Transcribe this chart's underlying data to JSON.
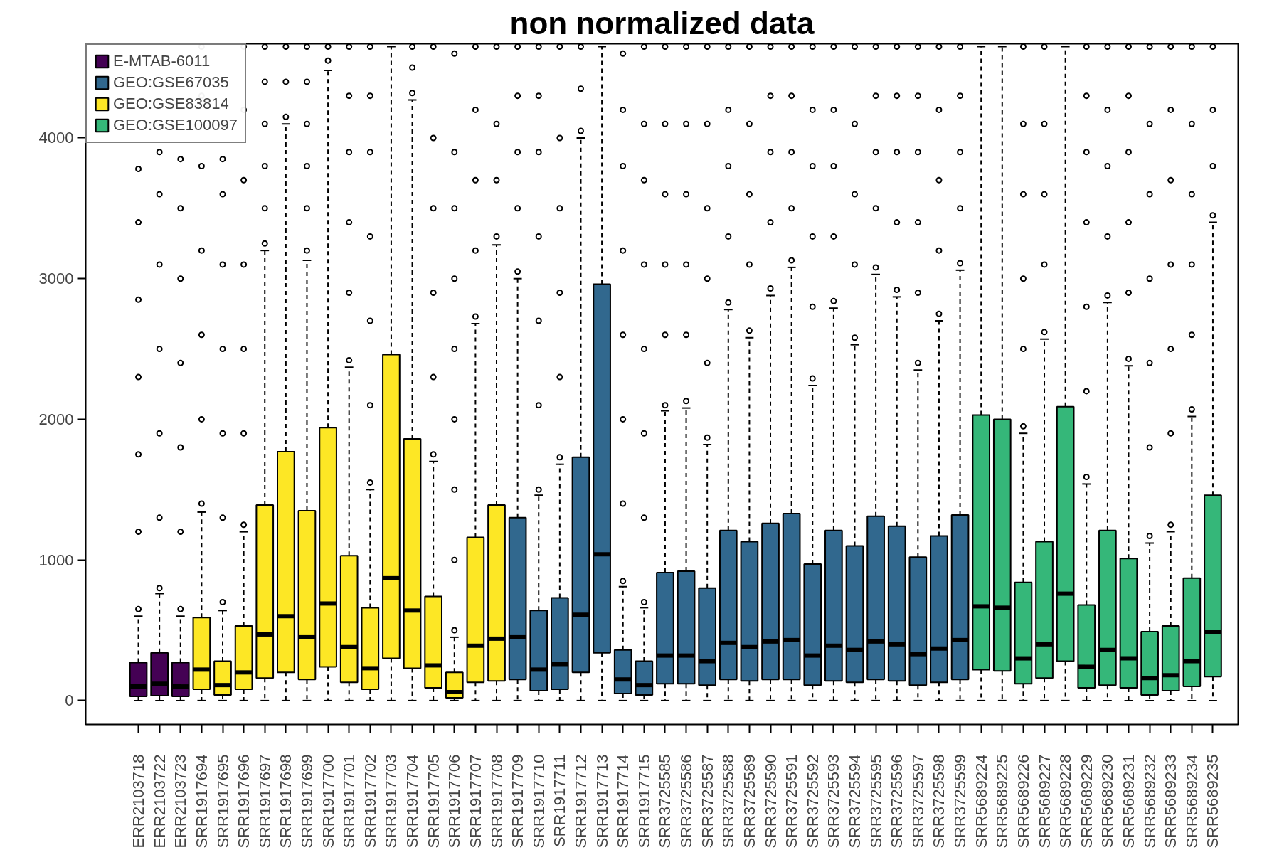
{
  "chart_data": {
    "type": "box",
    "title": "non normalized data",
    "categories": [
      "ERR2103718",
      "ERR2103722",
      "ERR2103723",
      "SRR1917694",
      "SRR1917695",
      "SRR1917696",
      "SRR1917697",
      "SRR1917698",
      "SRR1917699",
      "SRR1917700",
      "SRR1917701",
      "SRR1917702",
      "SRR1917703",
      "SRR1917704",
      "SRR1917705",
      "SRR1917706",
      "SRR1917707",
      "SRR1917708",
      "SRR1917709",
      "SRR1917710",
      "SRR1917711",
      "SRR1917712",
      "SRR1917713",
      "SRR1917714",
      "SRR1917715",
      "SRR3725585",
      "SRR3725586",
      "SRR3725587",
      "SRR3725588",
      "SRR3725589",
      "SRR3725590",
      "SRR3725591",
      "SRR3725592",
      "SRR3725593",
      "SRR3725594",
      "SRR3725595",
      "SRR3725596",
      "SRR3725597",
      "SRR3725598",
      "SRR3725599",
      "SRR5689224",
      "SRR5689225",
      "SRR5689226",
      "SRR5689227",
      "SRR5689228",
      "SRR5689229",
      "SRR5689230",
      "SRR5689231",
      "SRR5689232",
      "SRR5689233",
      "SRR5689234",
      "SRR5689235"
    ],
    "ylim": [
      -170,
      4670
    ],
    "yticks": [
      0,
      1000,
      2000,
      3000,
      4000
    ],
    "grid": false,
    "legend": "top left",
    "series": [
      {
        "name": "E-MTAB-6011",
        "color": "#440154",
        "boxes": [
          {
            "low": 0,
            "q1": 30,
            "median": 100,
            "q3": 270,
            "high": 600,
            "outliers": [
              650,
              1200,
              1750,
              2300,
              2850,
              3400,
              3780
            ]
          },
          {
            "low": 0,
            "q1": 35,
            "median": 120,
            "q3": 340,
            "high": 760,
            "outliers": [
              800,
              1300,
              1900,
              2500,
              3100,
              3600,
              3900
            ]
          },
          {
            "low": 0,
            "q1": 30,
            "median": 100,
            "q3": 270,
            "high": 600,
            "outliers": [
              650,
              1200,
              1800,
              2400,
              3000,
              3500,
              3850
            ]
          },
          null,
          null,
          null,
          null,
          null,
          null,
          null,
          null,
          null,
          null,
          null,
          null,
          null,
          null,
          null,
          null,
          null,
          null,
          null,
          null,
          null,
          null,
          null,
          null,
          null,
          null,
          null,
          null,
          null,
          null,
          null,
          null,
          null,
          null,
          null,
          null,
          null,
          null,
          null,
          null,
          null,
          null,
          null,
          null,
          null,
          null,
          null,
          null,
          null
        ]
      },
      {
        "name": "GEO:GSE67035",
        "color": "#31688e",
        "boxes": [
          null,
          null,
          null,
          null,
          null,
          null,
          null,
          null,
          null,
          null,
          null,
          null,
          null,
          null,
          null,
          null,
          null,
          null,
          {
            "low": 0,
            "q1": 150,
            "median": 450,
            "q3": 1300,
            "high": 3000,
            "outliers": [
              3050,
              3500,
              3900,
              4300,
              4650
            ]
          },
          {
            "low": 0,
            "q1": 70,
            "median": 220,
            "q3": 640,
            "high": 1460,
            "outliers": [
              1500,
              2100,
              2700,
              3300,
              3900,
              4300,
              4650
            ]
          },
          {
            "low": 0,
            "q1": 80,
            "median": 260,
            "q3": 730,
            "high": 1680,
            "outliers": [
              1730,
              2300,
              2900,
              3500,
              4000,
              4650
            ]
          },
          {
            "low": 0,
            "q1": 200,
            "median": 610,
            "q3": 1730,
            "high": 4000,
            "outliers": [
              4050,
              4350,
              4650
            ]
          },
          {
            "low": 0,
            "q1": 340,
            "median": 1040,
            "q3": 2960,
            "high": 4650
          },
          {
            "low": 0,
            "q1": 50,
            "median": 150,
            "q3": 360,
            "high": 810,
            "outliers": [
              850,
              1400,
              2000,
              2600,
              3200,
              3800,
              4200,
              4600
            ]
          },
          {
            "low": 0,
            "q1": 40,
            "median": 110,
            "q3": 280,
            "high": 660,
            "outliers": [
              700,
              1300,
              1900,
              2500,
              3100,
              3700,
              4100,
              4650
            ]
          },
          {
            "low": 0,
            "q1": 120,
            "median": 320,
            "q3": 910,
            "high": 2060,
            "outliers": [
              2100,
              2600,
              3100,
              3600,
              4100,
              4650
            ]
          },
          {
            "low": 0,
            "q1": 120,
            "median": 320,
            "q3": 920,
            "high": 2080,
            "outliers": [
              2130,
              2600,
              3100,
              3600,
              4100,
              4650
            ]
          },
          {
            "low": 0,
            "q1": 110,
            "median": 280,
            "q3": 800,
            "high": 1820,
            "outliers": [
              1870,
              2400,
              3000,
              3500,
              4100,
              4650
            ]
          },
          {
            "low": 0,
            "q1": 150,
            "median": 410,
            "q3": 1210,
            "high": 2780,
            "outliers": [
              2830,
              3300,
              3800,
              4200,
              4650
            ]
          },
          {
            "low": 0,
            "q1": 140,
            "median": 380,
            "q3": 1130,
            "high": 2580,
            "outliers": [
              2630,
              3100,
              3600,
              4100,
              4650
            ]
          },
          {
            "low": 0,
            "q1": 150,
            "median": 420,
            "q3": 1260,
            "high": 2880,
            "outliers": [
              2930,
              3400,
              3900,
              4300,
              4650
            ]
          },
          {
            "low": 0,
            "q1": 150,
            "median": 430,
            "q3": 1330,
            "high": 3080,
            "outliers": [
              3130,
              3500,
              3900,
              4300,
              4650
            ]
          },
          {
            "low": 0,
            "q1": 110,
            "median": 320,
            "q3": 970,
            "high": 2240,
            "outliers": [
              2290,
              2800,
              3300,
              3800,
              4200,
              4650
            ]
          },
          {
            "low": 0,
            "q1": 140,
            "median": 390,
            "q3": 1210,
            "high": 2790,
            "outliers": [
              2840,
              3300,
              3800,
              4200,
              4650
            ]
          },
          {
            "low": 0,
            "q1": 130,
            "median": 360,
            "q3": 1100,
            "high": 2530,
            "outliers": [
              2580,
              3100,
              3600,
              4100,
              4650
            ]
          },
          {
            "low": 0,
            "q1": 150,
            "median": 420,
            "q3": 1310,
            "high": 3030,
            "outliers": [
              3080,
              3500,
              3900,
              4300,
              4650
            ]
          },
          {
            "low": 0,
            "q1": 140,
            "median": 400,
            "q3": 1240,
            "high": 2870,
            "outliers": [
              2920,
              3400,
              3900,
              4300,
              4650
            ]
          },
          {
            "low": 0,
            "q1": 110,
            "median": 330,
            "q3": 1020,
            "high": 2350,
            "outliers": [
              2400,
              2900,
              3400,
              3900,
              4300,
              4650
            ]
          },
          {
            "low": 0,
            "q1": 130,
            "median": 370,
            "q3": 1170,
            "high": 2700,
            "outliers": [
              2750,
              3200,
              3700,
              4200,
              4650
            ]
          },
          {
            "low": 0,
            "q1": 150,
            "median": 430,
            "q3": 1320,
            "high": 3060,
            "outliers": [
              3110,
              3500,
              3900,
              4300,
              4650
            ]
          },
          null,
          null,
          null,
          null,
          null,
          null,
          null,
          null,
          null,
          null,
          null,
          null
        ]
      },
      {
        "name": "GEO:GSE83814",
        "color": "#fde725",
        "boxes": [
          null,
          null,
          null,
          {
            "low": 0,
            "q1": 80,
            "median": 220,
            "q3": 590,
            "high": 1340,
            "outliers": [
              1400,
              2000,
              2600,
              3200,
              3800,
              4300,
              4650
            ]
          },
          {
            "low": 0,
            "q1": 40,
            "median": 110,
            "q3": 280,
            "high": 640,
            "outliers": [
              700,
              1300,
              1900,
              2500,
              3100,
              3600,
              3850
            ]
          },
          {
            "low": 0,
            "q1": 80,
            "median": 200,
            "q3": 530,
            "high": 1200,
            "outliers": [
              1250,
              1900,
              2500,
              3100,
              3700,
              4200,
              4650
            ]
          },
          {
            "low": 0,
            "q1": 160,
            "median": 470,
            "q3": 1390,
            "high": 3200,
            "outliers": [
              3250,
              3500,
              3800,
              4100,
              4400,
              4650
            ]
          },
          {
            "low": 0,
            "q1": 200,
            "median": 600,
            "q3": 1770,
            "high": 4100,
            "outliers": [
              4150,
              4400,
              4650
            ]
          },
          {
            "low": 0,
            "q1": 150,
            "median": 450,
            "q3": 1350,
            "high": 3130,
            "outliers": [
              3200,
              3500,
              3800,
              4100,
              4400,
              4650
            ]
          },
          {
            "low": 0,
            "q1": 240,
            "median": 690,
            "q3": 1940,
            "high": 4480,
            "outliers": [
              4550,
              4650
            ]
          },
          {
            "low": 0,
            "q1": 130,
            "median": 380,
            "q3": 1030,
            "high": 2370,
            "outliers": [
              2420,
              2900,
              3400,
              3900,
              4300,
              4650
            ]
          },
          {
            "low": 0,
            "q1": 80,
            "median": 230,
            "q3": 660,
            "high": 1500,
            "outliers": [
              1550,
              2100,
              2700,
              3300,
              3900,
              4300,
              4650
            ]
          },
          {
            "low": 0,
            "q1": 300,
            "median": 870,
            "q3": 2460,
            "high": 4650
          },
          {
            "low": 0,
            "q1": 230,
            "median": 640,
            "q3": 1860,
            "high": 4270,
            "outliers": [
              4320,
              4500,
              4650
            ]
          },
          {
            "low": 0,
            "q1": 90,
            "median": 250,
            "q3": 740,
            "high": 1700,
            "outliers": [
              1750,
              2300,
              2900,
              3500,
              4000,
              4650
            ]
          },
          {
            "low": 0,
            "q1": 20,
            "median": 60,
            "q3": 200,
            "high": 450,
            "outliers": [
              500,
              1000,
              1500,
              2000,
              2500,
              3000,
              3500,
              3900,
              4600
            ]
          },
          {
            "low": 0,
            "q1": 130,
            "median": 390,
            "q3": 1160,
            "high": 2680,
            "outliers": [
              2730,
              3200,
              3700,
              4200,
              4650
            ]
          },
          {
            "low": 0,
            "q1": 140,
            "median": 440,
            "q3": 1390,
            "high": 3240,
            "outliers": [
              3300,
              3700,
              4100,
              4650
            ]
          },
          null,
          null,
          null,
          null,
          null,
          null,
          null,
          null,
          null,
          null,
          null,
          null,
          null,
          null,
          null,
          null,
          null,
          null,
          null,
          null,
          null,
          null,
          null,
          null,
          null,
          null,
          null,
          null,
          null,
          null,
          null,
          null,
          null,
          null
        ]
      },
      {
        "name": "GEO:GSE100097",
        "color": "#35b779",
        "boxes": [
          null,
          null,
          null,
          null,
          null,
          null,
          null,
          null,
          null,
          null,
          null,
          null,
          null,
          null,
          null,
          null,
          null,
          null,
          null,
          null,
          null,
          null,
          null,
          null,
          null,
          null,
          null,
          null,
          null,
          null,
          null,
          null,
          null,
          null,
          null,
          null,
          null,
          null,
          null,
          null,
          {
            "low": 0,
            "q1": 220,
            "median": 670,
            "q3": 2030,
            "high": 4650
          },
          {
            "low": 0,
            "q1": 210,
            "median": 660,
            "q3": 2000,
            "high": 4650
          },
          {
            "low": 0,
            "q1": 120,
            "median": 300,
            "q3": 840,
            "high": 1900,
            "outliers": [
              1950,
              2500,
              3000,
              3600,
              4100,
              4650
            ]
          },
          {
            "low": 0,
            "q1": 160,
            "median": 400,
            "q3": 1130,
            "high": 2570,
            "outliers": [
              2620,
              3100,
              3600,
              4100,
              4650
            ]
          },
          {
            "low": 0,
            "q1": 280,
            "median": 760,
            "q3": 2090,
            "high": 4650
          },
          {
            "low": 0,
            "q1": 90,
            "median": 240,
            "q3": 680,
            "high": 1540,
            "outliers": [
              1590,
              2200,
              2800,
              3400,
              3900,
              4300,
              4650
            ]
          },
          {
            "low": 0,
            "q1": 110,
            "median": 360,
            "q3": 1210,
            "high": 2830,
            "outliers": [
              2880,
              3300,
              3800,
              4200,
              4650
            ]
          },
          {
            "low": 0,
            "q1": 90,
            "median": 300,
            "q3": 1010,
            "high": 2380,
            "outliers": [
              2430,
              2900,
              3400,
              3900,
              4300,
              4650
            ]
          },
          {
            "low": 0,
            "q1": 40,
            "median": 160,
            "q3": 490,
            "high": 1120,
            "outliers": [
              1170,
              1800,
              2400,
              3000,
              3600,
              4100,
              4650
            ]
          },
          {
            "low": 0,
            "q1": 70,
            "median": 180,
            "q3": 530,
            "high": 1200,
            "outliers": [
              1250,
              1900,
              2500,
              3100,
              3700,
              4200,
              4650
            ]
          },
          {
            "low": 0,
            "q1": 100,
            "median": 280,
            "q3": 870,
            "high": 2020,
            "outliers": [
              2070,
              2600,
              3100,
              3600,
              4100,
              4650
            ]
          },
          {
            "low": 0,
            "q1": 170,
            "median": 490,
            "q3": 1460,
            "high": 3400,
            "outliers": [
              3450,
              3800,
              4200,
              4650
            ]
          }
        ]
      }
    ]
  }
}
